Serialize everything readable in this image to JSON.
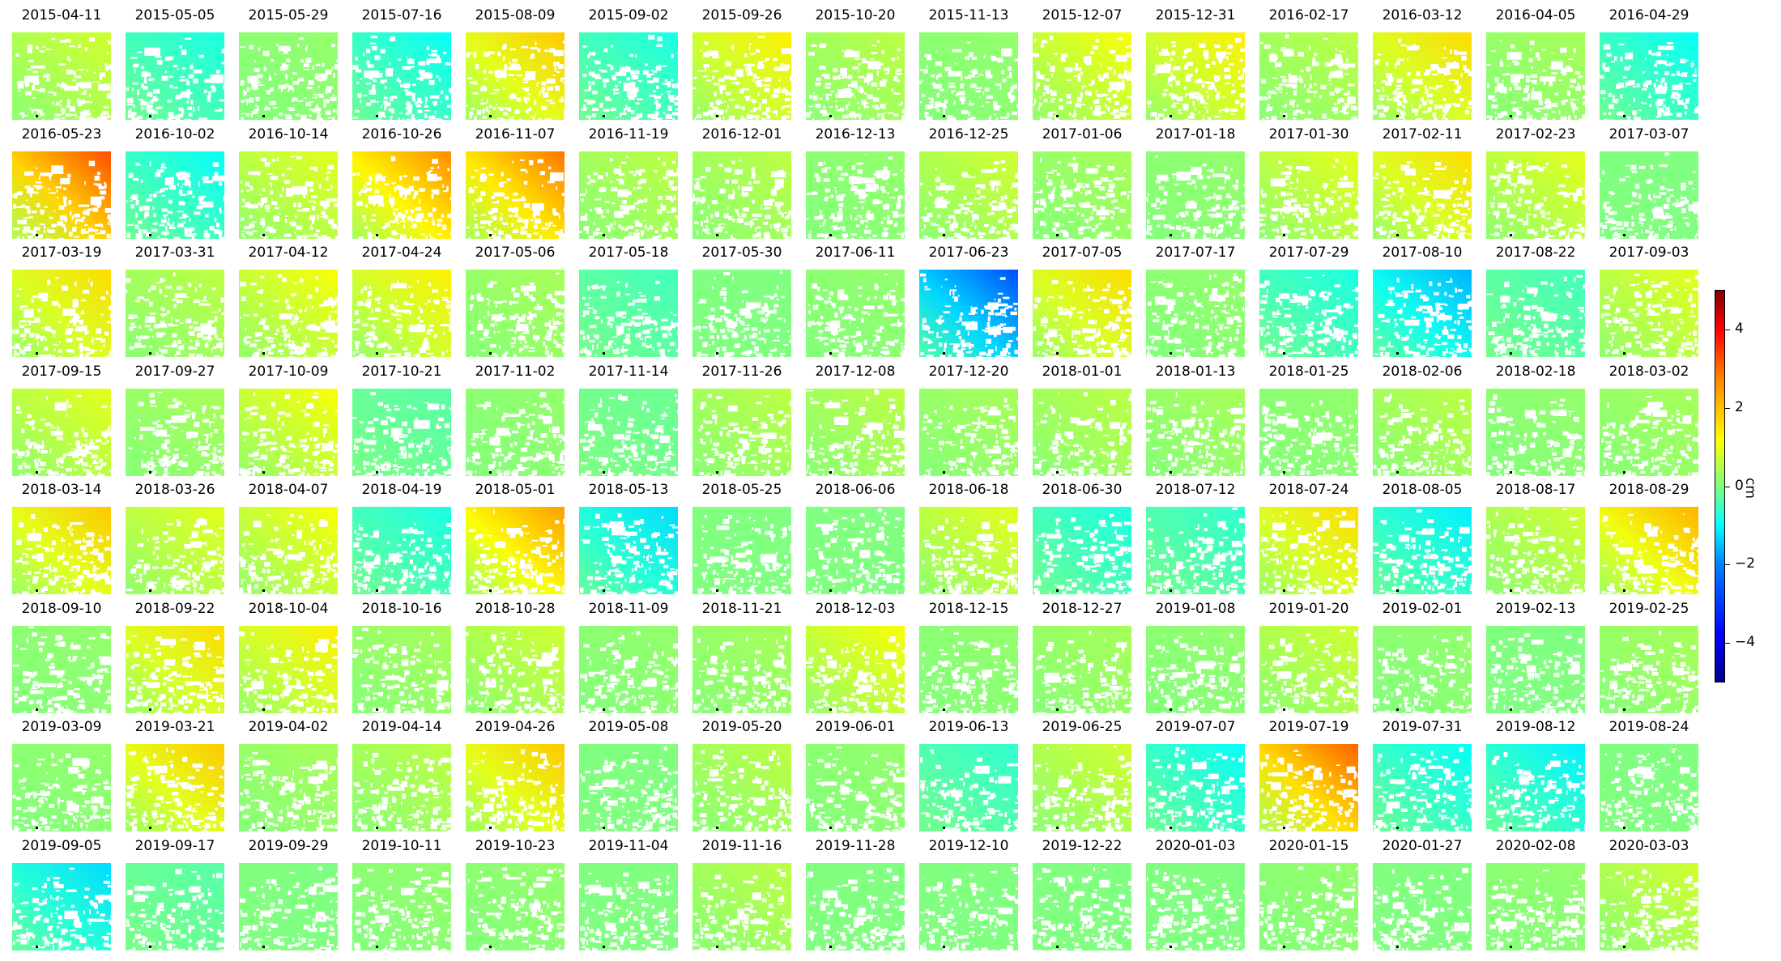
{
  "chart_data": {
    "type": "heatmap",
    "colormap": "jet",
    "colorbar": {
      "unit": "cm",
      "range": [
        -5,
        5
      ],
      "ticks": [
        4,
        2,
        0,
        -2,
        -4
      ],
      "tick_labels": [
        "4",
        "2",
        "0",
        "−2",
        "−4"
      ]
    },
    "panels": [
      {
        "date": "2015-04-11",
        "value": 0.8
      },
      {
        "date": "2015-05-05",
        "value": -1.0
      },
      {
        "date": "2015-05-29",
        "value": 0.2
      },
      {
        "date": "2015-07-16",
        "value": -1.2
      },
      {
        "date": "2015-08-09",
        "value": 1.8
      },
      {
        "date": "2015-09-02",
        "value": -1.0
      },
      {
        "date": "2015-09-26",
        "value": 1.4
      },
      {
        "date": "2015-10-20",
        "value": 0.6
      },
      {
        "date": "2015-11-13",
        "value": 0.2
      },
      {
        "date": "2015-12-07",
        "value": 1.2
      },
      {
        "date": "2015-12-31",
        "value": 1.4
      },
      {
        "date": "2016-02-17",
        "value": 0.6
      },
      {
        "date": "2016-03-12",
        "value": 1.6
      },
      {
        "date": "2016-04-05",
        "value": 0.4
      },
      {
        "date": "2016-04-29",
        "value": -1.2
      },
      {
        "date": "2016-05-23",
        "value": 3.0
      },
      {
        "date": "2016-10-02",
        "value": -1.2
      },
      {
        "date": "2016-10-14",
        "value": 1.0
      },
      {
        "date": "2016-10-26",
        "value": 2.4
      },
      {
        "date": "2016-11-07",
        "value": 2.6
      },
      {
        "date": "2016-11-19",
        "value": 0.6
      },
      {
        "date": "2016-12-01",
        "value": 0.6
      },
      {
        "date": "2016-12-13",
        "value": 0.2
      },
      {
        "date": "2016-12-25",
        "value": 0.8
      },
      {
        "date": "2017-01-06",
        "value": 0.4
      },
      {
        "date": "2017-01-18",
        "value": 0.2
      },
      {
        "date": "2017-01-30",
        "value": 1.0
      },
      {
        "date": "2017-02-11",
        "value": 1.6
      },
      {
        "date": "2017-02-23",
        "value": 1.0
      },
      {
        "date": "2017-03-07",
        "value": 0.0
      },
      {
        "date": "2017-03-19",
        "value": 1.6
      },
      {
        "date": "2017-03-31",
        "value": 0.6
      },
      {
        "date": "2017-04-12",
        "value": 1.2
      },
      {
        "date": "2017-04-24",
        "value": 1.4
      },
      {
        "date": "2017-05-06",
        "value": 0.4
      },
      {
        "date": "2017-05-18",
        "value": -0.6
      },
      {
        "date": "2017-05-30",
        "value": 0.0
      },
      {
        "date": "2017-06-11",
        "value": 0.2
      },
      {
        "date": "2017-06-23",
        "value": -3.0
      },
      {
        "date": "2017-07-05",
        "value": 1.6
      },
      {
        "date": "2017-07-17",
        "value": 0.2
      },
      {
        "date": "2017-07-29",
        "value": -1.0
      },
      {
        "date": "2017-08-10",
        "value": -2.0
      },
      {
        "date": "2017-08-22",
        "value": -0.6
      },
      {
        "date": "2017-09-03",
        "value": 1.0
      },
      {
        "date": "2017-09-15",
        "value": 1.0
      },
      {
        "date": "2017-09-27",
        "value": 0.4
      },
      {
        "date": "2017-10-09",
        "value": 1.2
      },
      {
        "date": "2017-10-21",
        "value": -0.4
      },
      {
        "date": "2017-11-02",
        "value": 0.2
      },
      {
        "date": "2017-11-14",
        "value": -0.2
      },
      {
        "date": "2017-11-26",
        "value": 0.6
      },
      {
        "date": "2017-12-08",
        "value": 0.6
      },
      {
        "date": "2017-12-20",
        "value": 0.4
      },
      {
        "date": "2018-01-01",
        "value": 0.6
      },
      {
        "date": "2018-01-13",
        "value": 0.4
      },
      {
        "date": "2018-01-25",
        "value": 0.2
      },
      {
        "date": "2018-02-06",
        "value": 0.6
      },
      {
        "date": "2018-02-18",
        "value": 0.2
      },
      {
        "date": "2018-03-02",
        "value": 0.4
      },
      {
        "date": "2018-03-14",
        "value": 1.8
      },
      {
        "date": "2018-03-26",
        "value": 1.0
      },
      {
        "date": "2018-04-07",
        "value": 1.2
      },
      {
        "date": "2018-04-19",
        "value": -1.0
      },
      {
        "date": "2018-05-01",
        "value": 2.2
      },
      {
        "date": "2018-05-13",
        "value": -1.6
      },
      {
        "date": "2018-05-25",
        "value": 0.0
      },
      {
        "date": "2018-06-06",
        "value": 0.0
      },
      {
        "date": "2018-06-18",
        "value": 1.0
      },
      {
        "date": "2018-06-30",
        "value": -1.0
      },
      {
        "date": "2018-07-12",
        "value": -0.8
      },
      {
        "date": "2018-07-24",
        "value": 1.6
      },
      {
        "date": "2018-08-05",
        "value": -1.4
      },
      {
        "date": "2018-08-17",
        "value": 0.8
      },
      {
        "date": "2018-08-29",
        "value": 2.0
      },
      {
        "date": "2018-09-10",
        "value": 0.2
      },
      {
        "date": "2018-09-22",
        "value": 1.6
      },
      {
        "date": "2018-10-04",
        "value": 1.4
      },
      {
        "date": "2018-10-16",
        "value": 0.4
      },
      {
        "date": "2018-10-28",
        "value": 0.8
      },
      {
        "date": "2018-11-09",
        "value": 0.2
      },
      {
        "date": "2018-11-21",
        "value": 0.4
      },
      {
        "date": "2018-12-03",
        "value": 1.2
      },
      {
        "date": "2018-12-15",
        "value": 0.2
      },
      {
        "date": "2018-12-27",
        "value": 0.4
      },
      {
        "date": "2019-01-08",
        "value": 0.2
      },
      {
        "date": "2019-01-20",
        "value": 0.8
      },
      {
        "date": "2019-02-01",
        "value": 0.2
      },
      {
        "date": "2019-02-13",
        "value": 0.0
      },
      {
        "date": "2019-02-25",
        "value": 0.4
      },
      {
        "date": "2019-03-09",
        "value": 0.2
      },
      {
        "date": "2019-03-21",
        "value": 1.8
      },
      {
        "date": "2019-04-02",
        "value": 0.4
      },
      {
        "date": "2019-04-14",
        "value": 0.6
      },
      {
        "date": "2019-04-26",
        "value": 1.8
      },
      {
        "date": "2019-05-08",
        "value": 0.0
      },
      {
        "date": "2019-05-20",
        "value": 0.6
      },
      {
        "date": "2019-06-01",
        "value": 0.2
      },
      {
        "date": "2019-06-13",
        "value": -0.8
      },
      {
        "date": "2019-06-25",
        "value": 0.8
      },
      {
        "date": "2019-07-07",
        "value": -1.2
      },
      {
        "date": "2019-07-19",
        "value": 2.8
      },
      {
        "date": "2019-07-31",
        "value": -1.2
      },
      {
        "date": "2019-08-12",
        "value": -1.4
      },
      {
        "date": "2019-08-24",
        "value": 0.0
      },
      {
        "date": "2019-09-05",
        "value": -1.6
      },
      {
        "date": "2019-09-17",
        "value": -0.4
      },
      {
        "date": "2019-09-29",
        "value": 0.0
      },
      {
        "date": "2019-10-11",
        "value": 0.2
      },
      {
        "date": "2019-10-23",
        "value": 0.2
      },
      {
        "date": "2019-11-04",
        "value": 0.0
      },
      {
        "date": "2019-11-16",
        "value": 0.6
      },
      {
        "date": "2019-11-28",
        "value": 0.0
      },
      {
        "date": "2019-12-10",
        "value": 0.0
      },
      {
        "date": "2019-12-22",
        "value": 0.0
      },
      {
        "date": "2020-01-03",
        "value": 0.0
      },
      {
        "date": "2020-01-15",
        "value": 0.2
      },
      {
        "date": "2020-01-27",
        "value": 0.0
      },
      {
        "date": "2020-02-08",
        "value": 0.2
      },
      {
        "date": "2020-03-03",
        "value": 0.8
      }
    ]
  }
}
